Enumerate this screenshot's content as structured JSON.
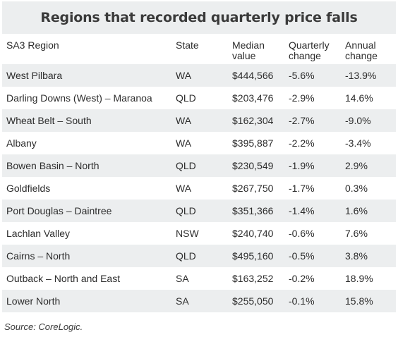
{
  "title": "Regions that recorded quarterly price falls",
  "columns": {
    "region": "SA3 Region",
    "state": "State",
    "median_line1": "Median",
    "median_line2": "value",
    "quarterly_line1": "Quarterly",
    "quarterly_line2": "change",
    "annual_line1": "Annual",
    "annual_line2": "change"
  },
  "rows": [
    {
      "region": "West Pilbara",
      "state": "WA",
      "median": "$444,566",
      "quarterly": "-5.6%",
      "annual": "-13.9%"
    },
    {
      "region": "Darling Downs (West) – Maranoa",
      "state": "QLD",
      "median": "$203,476",
      "quarterly": "-2.9%",
      "annual": "14.6%"
    },
    {
      "region": "Wheat Belt – South",
      "state": "WA",
      "median": "$162,304",
      "quarterly": "-2.7%",
      "annual": "-9.0%"
    },
    {
      "region": "Albany",
      "state": "WA",
      "median": "$395,887",
      "quarterly": "-2.2%",
      "annual": "-3.4%"
    },
    {
      "region": "Bowen Basin – North",
      "state": "QLD",
      "median": "$230,549",
      "quarterly": "-1.9%",
      "annual": "2.9%"
    },
    {
      "region": "Goldfields",
      "state": "WA",
      "median": "$267,750",
      "quarterly": "-1.7%",
      "annual": "0.3%"
    },
    {
      "region": "Port Douglas – Daintree",
      "state": "QLD",
      "median": "$351,366",
      "quarterly": "-1.4%",
      "annual": "1.6%"
    },
    {
      "region": "Lachlan Valley",
      "state": "NSW",
      "median": "$240,740",
      "quarterly": "-0.6%",
      "annual": "7.6%"
    },
    {
      "region": "Cairns – North",
      "state": "QLD",
      "median": "$495,160",
      "quarterly": "-0.5%",
      "annual": "3.8%"
    },
    {
      "region": "Outback – North and East",
      "state": "SA",
      "median": "$163,252",
      "quarterly": "-0.2%",
      "annual": "18.9%"
    },
    {
      "region": "Lower North",
      "state": "SA",
      "median": "$255,050",
      "quarterly": "-0.1%",
      "annual": "15.8%"
    }
  ],
  "source": "Source: CoreLogic."
}
